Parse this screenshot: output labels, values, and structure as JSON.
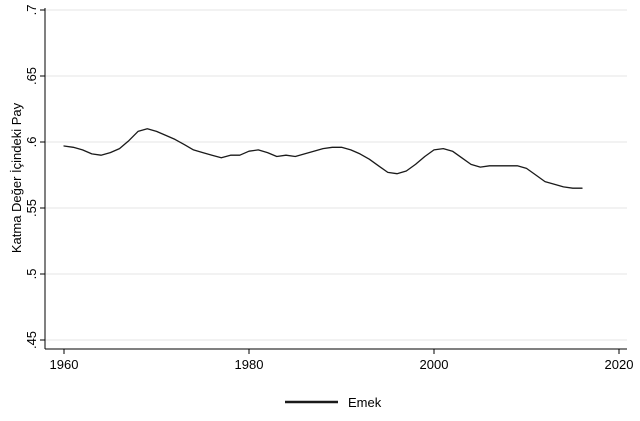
{
  "chart_data": {
    "type": "line",
    "title": "",
    "xlabel": "",
    "ylabel": "Katma Değer İçindeki Pay",
    "xlim": [
      1960,
      2020
    ],
    "ylim": [
      0.45,
      0.7
    ],
    "xticks": [
      1960,
      1980,
      2000,
      2020
    ],
    "xtick_labels": [
      "1960",
      "1980",
      "2000",
      "2020"
    ],
    "yticks": [
      0.45,
      0.5,
      0.55,
      0.6,
      0.65,
      0.7
    ],
    "ytick_labels": [
      ".45",
      ".5",
      ".55",
      ".6",
      ".65",
      ".7"
    ],
    "grid": true,
    "legend_position": "bottom",
    "series": [
      {
        "name": "Emek",
        "color": "#1a1a1a",
        "x": [
          1960,
          1961,
          1962,
          1963,
          1964,
          1965,
          1966,
          1967,
          1968,
          1969,
          1970,
          1971,
          1972,
          1973,
          1974,
          1975,
          1976,
          1977,
          1978,
          1979,
          1980,
          1981,
          1982,
          1983,
          1984,
          1985,
          1986,
          1987,
          1988,
          1989,
          1990,
          1991,
          1992,
          1993,
          1994,
          1995,
          1996,
          1997,
          1998,
          1999,
          2000,
          2001,
          2002,
          2003,
          2004,
          2005,
          2006,
          2007,
          2008,
          2009,
          2010,
          2011,
          2012,
          2013,
          2014,
          2015,
          2016
        ],
        "y": [
          0.597,
          0.596,
          0.594,
          0.591,
          0.59,
          0.592,
          0.595,
          0.601,
          0.608,
          0.61,
          0.608,
          0.605,
          0.602,
          0.598,
          0.594,
          0.592,
          0.59,
          0.588,
          0.59,
          0.59,
          0.593,
          0.594,
          0.592,
          0.589,
          0.59,
          0.589,
          0.591,
          0.593,
          0.595,
          0.596,
          0.596,
          0.594,
          0.591,
          0.587,
          0.582,
          0.577,
          0.576,
          0.578,
          0.583,
          0.589,
          0.594,
          0.595,
          0.593,
          0.588,
          0.583,
          0.581,
          0.582,
          0.582,
          0.582,
          0.582,
          0.58,
          0.575,
          0.57,
          0.568,
          0.566,
          0.565,
          0.565
        ]
      }
    ]
  }
}
